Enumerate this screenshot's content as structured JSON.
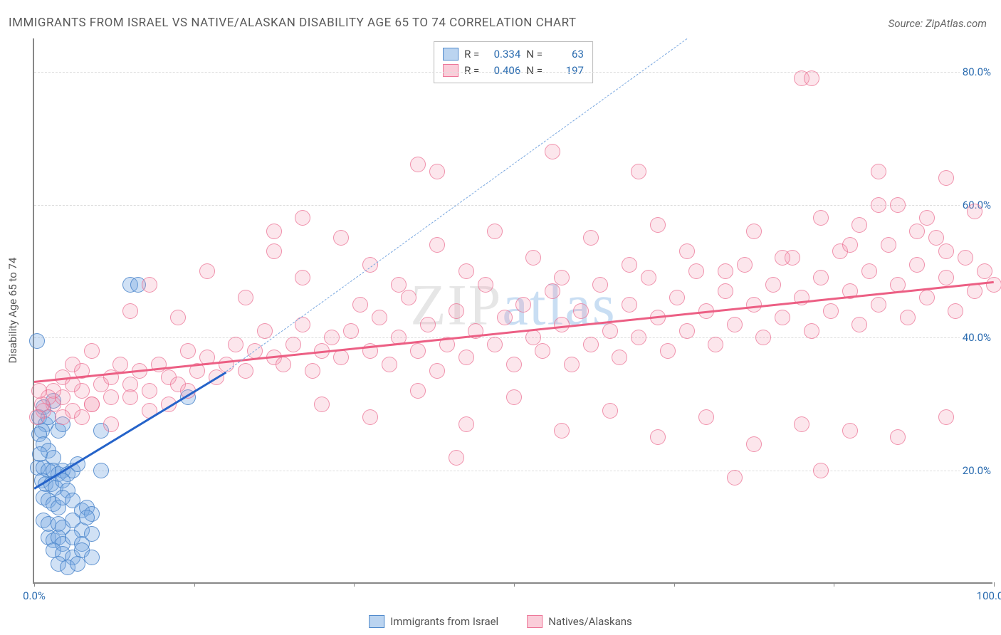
{
  "title": "IMMIGRANTS FROM ISRAEL VS NATIVE/ALASKAN DISABILITY AGE 65 TO 74 CORRELATION CHART",
  "source_label": "Source:",
  "source_name": "ZipAtlas.com",
  "watermark_a": "ZIP",
  "watermark_b": "atlas",
  "ylabel": "Disability Age 65 to 74",
  "chart": {
    "type": "scatter",
    "xlim": [
      0,
      100
    ],
    "ylim": [
      3,
      85
    ],
    "y_ticks": [
      20,
      40,
      60,
      80
    ],
    "y_tick_labels": [
      "20.0%",
      "40.0%",
      "60.0%",
      "80.0%"
    ],
    "x_ticks": [
      0,
      16.7,
      33.3,
      50,
      66.7,
      83.3,
      100
    ],
    "x_tick_labels": [
      "0.0%",
      "",
      "",
      "",
      "",
      "",
      "100.0%"
    ],
    "grid_color": "#dddddd",
    "axis_color": "#888888",
    "plot_bg": "#ffffff",
    "series": [
      {
        "name": "Immigrants from Israel",
        "color_fill": "rgba(120,170,225,0.35)",
        "color_stroke": "rgba(70,130,200,0.8)",
        "marker_size": 22,
        "R": "0.334",
        "N": "63",
        "trend": {
          "x1": 0,
          "y1": 17.5,
          "x2": 20,
          "y2": 35,
          "color": "#2563c9",
          "dash_extend_to_x": 68,
          "dash_extend_to_y": 85
        },
        "points": [
          [
            0.3,
            39.5
          ],
          [
            0.5,
            28
          ],
          [
            1,
            29.5
          ],
          [
            1.2,
            27
          ],
          [
            1.5,
            28
          ],
          [
            0.8,
            26
          ],
          [
            0.5,
            25.5
          ],
          [
            2,
            30.5
          ],
          [
            2.5,
            26
          ],
          [
            3,
            27
          ],
          [
            1,
            24
          ],
          [
            1.5,
            23
          ],
          [
            0.6,
            22.5
          ],
          [
            2,
            22
          ],
          [
            0.4,
            20.5
          ],
          [
            1,
            20.5
          ],
          [
            1.5,
            20
          ],
          [
            2,
            20
          ],
          [
            2.5,
            19.5
          ],
          [
            3,
            20
          ],
          [
            3.5,
            19.5
          ],
          [
            4,
            20
          ],
          [
            4.5,
            21
          ],
          [
            0.8,
            18.5
          ],
          [
            1.2,
            18
          ],
          [
            1.8,
            18
          ],
          [
            2.2,
            17.5
          ],
          [
            3,
            18.5
          ],
          [
            3.5,
            17
          ],
          [
            1,
            16
          ],
          [
            1.5,
            15.5
          ],
          [
            2,
            15
          ],
          [
            2.5,
            14.5
          ],
          [
            3,
            16
          ],
          [
            4,
            15.5
          ],
          [
            5,
            14
          ],
          [
            5.5,
            14.5
          ],
          [
            6,
            13.5
          ],
          [
            7,
            20
          ],
          [
            1,
            12.5
          ],
          [
            1.5,
            12
          ],
          [
            2.5,
            12
          ],
          [
            3,
            11.5
          ],
          [
            4,
            12.5
          ],
          [
            5,
            11
          ],
          [
            5.5,
            13
          ],
          [
            1.5,
            10
          ],
          [
            2,
            9.5
          ],
          [
            2.5,
            10
          ],
          [
            3,
            9
          ],
          [
            4,
            10
          ],
          [
            5,
            9
          ],
          [
            6,
            10.5
          ],
          [
            2,
            8
          ],
          [
            3,
            7.5
          ],
          [
            4,
            7
          ],
          [
            5,
            8
          ],
          [
            2.5,
            6
          ],
          [
            3.5,
            5.5
          ],
          [
            4.5,
            6
          ],
          [
            6,
            7
          ],
          [
            10,
            48
          ],
          [
            10.8,
            48
          ],
          [
            16,
            31
          ],
          [
            7,
            26
          ]
        ]
      },
      {
        "name": "Natives/Alaskans",
        "color_fill": "rgba(245,155,180,0.25)",
        "color_stroke": "rgba(235,110,145,0.7)",
        "marker_size": 22,
        "R": "0.406",
        "N": "197",
        "trend": {
          "x1": 0,
          "y1": 33.5,
          "x2": 100,
          "y2": 48.5,
          "color": "#ec5f84"
        },
        "points": [
          [
            2,
            30
          ],
          [
            3,
            31
          ],
          [
            4,
            29
          ],
          [
            5,
            32
          ],
          [
            6,
            30
          ],
          [
            7,
            33
          ],
          [
            8,
            31
          ],
          [
            3,
            34
          ],
          [
            4,
            36
          ],
          [
            5,
            35
          ],
          [
            6,
            38
          ],
          [
            8,
            34
          ],
          [
            9,
            36
          ],
          [
            10,
            33
          ],
          [
            11,
            35
          ],
          [
            12,
            32
          ],
          [
            13,
            36
          ],
          [
            14,
            34
          ],
          [
            15,
            33
          ],
          [
            16,
            38
          ],
          [
            17,
            35
          ],
          [
            18,
            37
          ],
          [
            19,
            34
          ],
          [
            20,
            36
          ],
          [
            21,
            39
          ],
          [
            22,
            35
          ],
          [
            23,
            38
          ],
          [
            24,
            41
          ],
          [
            25,
            37
          ],
          [
            26,
            36
          ],
          [
            27,
            39
          ],
          [
            28,
            42
          ],
          [
            29,
            35
          ],
          [
            30,
            38
          ],
          [
            31,
            40
          ],
          [
            32,
            37
          ],
          [
            33,
            41
          ],
          [
            34,
            45
          ],
          [
            35,
            38
          ],
          [
            36,
            43
          ],
          [
            37,
            36
          ],
          [
            38,
            40
          ],
          [
            39,
            46
          ],
          [
            40,
            38
          ],
          [
            41,
            42
          ],
          [
            42,
            35
          ],
          [
            43,
            39
          ],
          [
            44,
            44
          ],
          [
            45,
            37
          ],
          [
            46,
            41
          ],
          [
            47,
            48
          ],
          [
            48,
            39
          ],
          [
            49,
            43
          ],
          [
            50,
            36
          ],
          [
            51,
            45
          ],
          [
            52,
            40
          ],
          [
            53,
            38
          ],
          [
            54,
            47
          ],
          [
            55,
            42
          ],
          [
            56,
            36
          ],
          [
            57,
            44
          ],
          [
            58,
            39
          ],
          [
            59,
            48
          ],
          [
            60,
            41
          ],
          [
            61,
            37
          ],
          [
            62,
            45
          ],
          [
            63,
            40
          ],
          [
            64,
            49
          ],
          [
            65,
            43
          ],
          [
            66,
            38
          ],
          [
            67,
            46
          ],
          [
            68,
            41
          ],
          [
            69,
            50
          ],
          [
            70,
            44
          ],
          [
            71,
            39
          ],
          [
            72,
            47
          ],
          [
            73,
            42
          ],
          [
            74,
            51
          ],
          [
            75,
            45
          ],
          [
            76,
            40
          ],
          [
            77,
            48
          ],
          [
            78,
            43
          ],
          [
            79,
            52
          ],
          [
            80,
            46
          ],
          [
            81,
            41
          ],
          [
            82,
            49
          ],
          [
            83,
            44
          ],
          [
            84,
            53
          ],
          [
            85,
            47
          ],
          [
            86,
            42
          ],
          [
            87,
            50
          ],
          [
            88,
            45
          ],
          [
            89,
            54
          ],
          [
            90,
            48
          ],
          [
            91,
            43
          ],
          [
            92,
            51
          ],
          [
            93,
            46
          ],
          [
            94,
            55
          ],
          [
            95,
            49
          ],
          [
            96,
            44
          ],
          [
            97,
            52
          ],
          [
            98,
            47
          ],
          [
            99,
            50
          ],
          [
            100,
            48
          ],
          [
            10,
            44
          ],
          [
            12,
            48
          ],
          [
            15,
            43
          ],
          [
            18,
            50
          ],
          [
            22,
            46
          ],
          [
            25,
            53
          ],
          [
            28,
            49
          ],
          [
            32,
            55
          ],
          [
            35,
            51
          ],
          [
            38,
            48
          ],
          [
            42,
            54
          ],
          [
            45,
            50
          ],
          [
            48,
            56
          ],
          [
            52,
            52
          ],
          [
            55,
            49
          ],
          [
            58,
            55
          ],
          [
            62,
            51
          ],
          [
            65,
            57
          ],
          [
            68,
            53
          ],
          [
            72,
            50
          ],
          [
            75,
            56
          ],
          [
            78,
            52
          ],
          [
            82,
            58
          ],
          [
            85,
            54
          ],
          [
            88,
            60
          ],
          [
            92,
            56
          ],
          [
            95,
            53
          ],
          [
            98,
            59
          ],
          [
            30,
            30
          ],
          [
            35,
            28
          ],
          [
            40,
            32
          ],
          [
            45,
            27
          ],
          [
            50,
            31
          ],
          [
            55,
            26
          ],
          [
            60,
            29
          ],
          [
            65,
            25
          ],
          [
            70,
            28
          ],
          [
            75,
            24
          ],
          [
            80,
            27
          ],
          [
            85,
            26
          ],
          [
            90,
            25
          ],
          [
            95,
            28
          ],
          [
            44,
            22
          ],
          [
            73,
            19
          ],
          [
            82,
            20
          ],
          [
            40,
            66
          ],
          [
            42,
            65
          ],
          [
            54,
            68
          ],
          [
            63,
            65
          ],
          [
            80,
            79
          ],
          [
            81,
            79
          ],
          [
            88,
            65
          ],
          [
            95,
            64
          ],
          [
            25,
            56
          ],
          [
            28,
            58
          ],
          [
            86,
            57
          ],
          [
            90,
            60
          ],
          [
            93,
            58
          ],
          [
            10,
            31
          ],
          [
            12,
            29
          ],
          [
            14,
            30
          ],
          [
            16,
            32
          ],
          [
            5,
            28
          ],
          [
            8,
            27
          ],
          [
            6,
            30
          ],
          [
            4,
            33
          ],
          [
            3,
            28
          ],
          [
            2,
            32
          ],
          [
            1,
            29
          ],
          [
            1.5,
            31
          ],
          [
            0.8,
            30
          ],
          [
            0.5,
            32
          ],
          [
            0.3,
            28
          ]
        ]
      }
    ]
  },
  "bottom_legend": {
    "s1": "Immigrants from Israel",
    "s2": "Natives/Alaskans"
  },
  "stats_legend": {
    "r_label": "R =",
    "n_label": "N ="
  }
}
